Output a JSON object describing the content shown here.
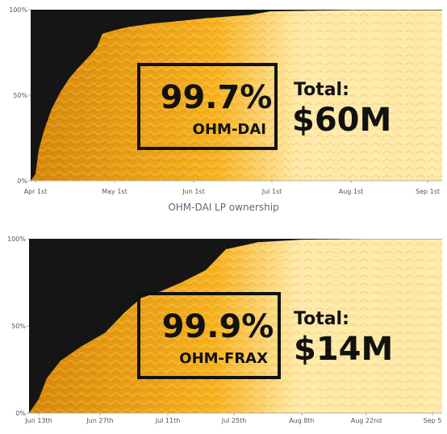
{
  "caption": "OHM-DAI LP ownership",
  "colors": {
    "background": "#151515",
    "fill_light": "#ffe9a6",
    "fill_mid": "#f7b21e",
    "fill_dark": "#d78708",
    "text": "#111111"
  },
  "chart_data": [
    {
      "type": "area",
      "title": "",
      "yticks": [
        "0%",
        "50%",
        "100%"
      ],
      "ylim": [
        0,
        100
      ],
      "xticks": [
        "Apr 1st",
        "May 1st",
        "Jun 1st",
        "Jul 1st",
        "Aug 1st",
        "Sep 1st"
      ],
      "x": [
        "Mar 30",
        "Apr 1",
        "Apr 3",
        "Apr 6",
        "Apr 10",
        "Apr 15",
        "Apr 20",
        "Apr 25",
        "Apr 30",
        "May 5",
        "May 8",
        "May 15",
        "May 22",
        "Jun 1",
        "Jun 10",
        "Jun 20",
        "Jul 1",
        "Jul 10",
        "Aug 1",
        "Sep 1",
        "Sep 3"
      ],
      "values": [
        0,
        4,
        18,
        30,
        42,
        52,
        60,
        66,
        72,
        78,
        86,
        88,
        90,
        92,
        93,
        95,
        97,
        99,
        99.7,
        99.7,
        99.7
      ],
      "highlight_value": "99.7%",
      "pair": "OHM-DAI",
      "total_label": "Total:",
      "total_value": "$60M"
    },
    {
      "type": "area",
      "title": "",
      "yticks": [
        "0%",
        "50%",
        "100%"
      ],
      "ylim": [
        0,
        100
      ],
      "xticks": [
        "Jun 13th",
        "Jun 27th",
        "Jul 11th",
        "Jul 25th",
        "Aug 8th",
        "Aug 22nd",
        "Sep 5"
      ],
      "x": [
        "Jun 12",
        "Jun 13",
        "Jun 16",
        "Jun 20",
        "Jun 25",
        "Jul 1",
        "Jul 6",
        "Jul 11",
        "Jul 16",
        "Jul 20",
        "Jul 23",
        "Jul 26",
        "Aug 1",
        "Aug 8",
        "Aug 22",
        "Sep 5"
      ],
      "values": [
        0,
        8,
        20,
        30,
        38,
        46,
        58,
        66,
        70,
        75,
        82,
        94,
        98,
        99.5,
        99.9,
        99.9
      ],
      "highlight_value": "99.9%",
      "pair": "OHM-FRAX",
      "total_label": "Total:",
      "total_value": "$14M"
    }
  ]
}
